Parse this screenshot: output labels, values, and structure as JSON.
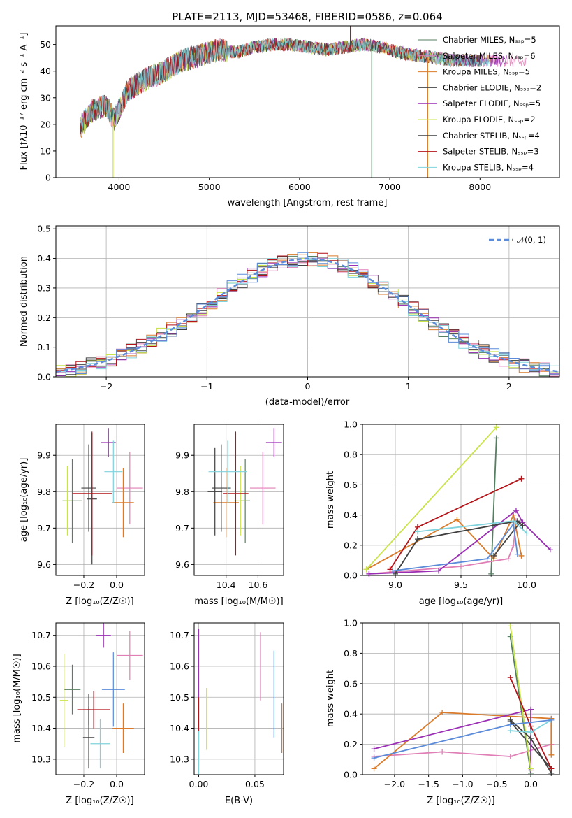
{
  "colors": [
    "#557f61",
    "#e07fb6",
    "#d97b2a",
    "#454545",
    "#9a2fb4",
    "#c9e44a",
    "#3f3f3f",
    "#b3141a",
    "#7fd3dd"
  ],
  "chart_data": [
    {
      "id": "spectrum",
      "type": "line",
      "title": "PLATE=2113, MJD=53468, FIBERID=0586, z=0.064",
      "xlabel": "wavelength [Angstrom, rest frame]",
      "ylabel": "Flux [fλ10⁻¹⁷ erg cm⁻² s⁻¹ A⁻¹]",
      "xlim": [
        3300,
        8880
      ],
      "ylim": [
        0,
        57
      ],
      "xticks": [
        4000,
        5000,
        6000,
        7000,
        8000
      ],
      "yticks": [
        0,
        10,
        20,
        30,
        40,
        50
      ],
      "legend_position": "top-right",
      "series": [
        {
          "name": "Chabrier MILES, Nₛₛₚ=5"
        },
        {
          "name": "Salpeter MILES, Nₛₛₚ=6"
        },
        {
          "name": "Kroupa MILES, Nₛₛₚ=5"
        },
        {
          "name": "Chabrier ELODIE, Nₛₛₚ=2"
        },
        {
          "name": "Salpeter ELODIE, Nₛₛₚ=5"
        },
        {
          "name": "Kroupa ELODIE, Nₛₛₚ=2"
        },
        {
          "name": "Chabrier STELIB, Nₛₛₚ=4"
        },
        {
          "name": "Salpeter STELIB, Nₛₛₚ=3"
        },
        {
          "name": "Kroupa STELIB, Nₛₛₚ=4"
        }
      ],
      "continuum": {
        "x": [
          3570,
          3700,
          3850,
          3950,
          4100,
          4300,
          4500,
          4700,
          4900,
          5100,
          5300,
          5500,
          5700,
          5900,
          6100,
          6300,
          6500,
          6700,
          6900,
          7100,
          7300,
          7500,
          7700,
          7900,
          8100,
          8300,
          8500,
          8700,
          8880
        ],
        "y": [
          19,
          25,
          27,
          22,
          33,
          37,
          40,
          44,
          46,
          48,
          47,
          49,
          50,
          50,
          49,
          48,
          49,
          50,
          49,
          47,
          46,
          45,
          44,
          44,
          44,
          44,
          43,
          43,
          43
        ]
      },
      "model_end": [
        7420,
        8520,
        8150,
        8000,
        8300,
        7700,
        8000,
        7420,
        8100
      ],
      "absorption_lines": [
        {
          "x": 3934,
          "y": 0
        },
        {
          "x": 6563,
          "y": 57
        },
        {
          "x": 6800,
          "y": 0
        },
        {
          "x": 7420,
          "y": 0
        }
      ]
    },
    {
      "id": "residuals",
      "type": "histogram",
      "xlabel": "(data-model)/error",
      "ylabel": "Normed distribution",
      "xlim": [
        -2.5,
        2.5
      ],
      "ylim": [
        0,
        0.51
      ],
      "xticks": [
        -2,
        -1,
        0,
        1,
        2
      ],
      "yticks": [
        0.0,
        0.1,
        0.2,
        0.3,
        0.4,
        0.5
      ],
      "bin_edges_step": 0.1,
      "reference": {
        "name": "𝒩(0, 1)",
        "mean": 0,
        "sigma": 1,
        "color": "#5b8bd9"
      }
    },
    {
      "id": "age_vs_Z",
      "type": "scatter",
      "xlabel": "Z [log₁₀(Z/Z☉)]",
      "ylabel": "age  [log₁₀(age/yr)]",
      "xlim": [
        -0.37,
        0.17
      ],
      "ylim": [
        9.57,
        9.985
      ],
      "xticks": [
        -0.2,
        0.0
      ],
      "yticks": [
        9.6,
        9.7,
        9.8,
        9.9
      ],
      "points": [
        {
          "x": -0.27,
          "y": 9.775,
          "xerr": 0.06,
          "yerr": 0.115,
          "color": "#557f61"
        },
        {
          "x": 0.08,
          "y": 9.81,
          "xerr": 0.08,
          "yerr": 0.1,
          "color": "#e07fb6"
        },
        {
          "x": 0.04,
          "y": 9.77,
          "xerr": 0.065,
          "yerr": 0.095,
          "color": "#d97b2a"
        },
        {
          "x": -0.17,
          "y": 9.81,
          "xerr": 0.045,
          "yerr": 0.12,
          "color": "#454545"
        },
        {
          "x": -0.05,
          "y": 9.935,
          "xerr": 0.045,
          "yerr": 0.04,
          "color": "#9a2fb4"
        },
        {
          "x": -0.3,
          "y": 9.775,
          "xerr": 0.025,
          "yerr": 0.095,
          "color": "#c9e44a"
        },
        {
          "x": -0.15,
          "y": 9.78,
          "xerr": 0.03,
          "yerr": 0.18,
          "color": "#3f3f3f"
        },
        {
          "x": -0.15,
          "y": 9.795,
          "xerr": 0.12,
          "yerr": 0.17,
          "color": "#b3141a"
        },
        {
          "x": -0.02,
          "y": 9.855,
          "xerr": 0.055,
          "yerr": 0.085,
          "color": "#7fd3dd"
        }
      ]
    },
    {
      "id": "age_vs_mass",
      "type": "scatter",
      "xlabel": "mass [log₁₀(M/M☉)]",
      "ylabel": "",
      "xlim": [
        10.2,
        10.76
      ],
      "ylim": [
        9.57,
        9.985
      ],
      "xticks": [
        10.4,
        10.6
      ],
      "yticks": [
        9.6,
        9.7,
        9.8,
        9.9
      ],
      "points": [
        {
          "x": 10.52,
          "y": 9.775,
          "xerr": 0.03,
          "yerr": 0.115,
          "color": "#557f61"
        },
        {
          "x": 10.63,
          "y": 9.81,
          "xerr": 0.08,
          "yerr": 0.1,
          "color": "#e07fb6"
        },
        {
          "x": 10.4,
          "y": 9.77,
          "xerr": 0.08,
          "yerr": 0.095,
          "color": "#d97b2a"
        },
        {
          "x": 10.37,
          "y": 9.81,
          "xerr": 0.06,
          "yerr": 0.12,
          "color": "#454545"
        },
        {
          "x": 10.7,
          "y": 9.935,
          "xerr": 0.05,
          "yerr": 0.04,
          "color": "#9a2fb4"
        },
        {
          "x": 10.49,
          "y": 9.775,
          "xerr": 0.04,
          "yerr": 0.095,
          "color": "#c9e44a"
        },
        {
          "x": 10.33,
          "y": 9.8,
          "xerr": 0.045,
          "yerr": 0.12,
          "color": "#3f3f3f"
        },
        {
          "x": 10.46,
          "y": 9.795,
          "xerr": 0.08,
          "yerr": 0.17,
          "color": "#b3141a"
        },
        {
          "x": 10.41,
          "y": 9.855,
          "xerr": 0.12,
          "yerr": 0.085,
          "color": "#7fd3dd"
        }
      ]
    },
    {
      "id": "weight_vs_age",
      "type": "line",
      "xlabel": "age  [log₁₀(age/yr)]",
      "ylabel": "mass weight",
      "xlim": [
        8.75,
        10.25
      ],
      "ylim": [
        0,
        1.0
      ],
      "xticks": [
        9.0,
        9.5,
        10.0
      ],
      "yticks": [
        0.0,
        0.2,
        0.4,
        0.6,
        0.8,
        1.0
      ],
      "series": [
        {
          "x": [
            9.73,
            9.77
          ],
          "y": [
            0.01,
            0.91
          ],
          "color": "#557f61"
        },
        {
          "x": [
            8.8,
            9.5,
            9.86,
            9.9,
            9.92
          ],
          "y": [
            0.01,
            0.06,
            0.11,
            0.2,
            0.36
          ],
          "color": "#e07fb6"
        },
        {
          "x": [
            8.78,
            9.47,
            9.75,
            9.9,
            9.96
          ],
          "y": [
            0.04,
            0.37,
            0.11,
            0.4,
            0.13
          ],
          "color": "#d97b2a"
        },
        {
          "x": [
            9.75,
            9.95
          ],
          "y": [
            0.13,
            0.35
          ],
          "color": "#454545"
        },
        {
          "x": [
            8.8,
            9.33,
            9.92,
            9.97,
            10.18
          ],
          "y": [
            0.01,
            0.03,
            0.43,
            0.35,
            0.17
          ],
          "color": "#9a2fb4"
        },
        {
          "x": [
            8.78,
            9.77
          ],
          "y": [
            0.04,
            0.98
          ],
          "color": "#c9e44a"
        },
        {
          "x": [
            9.0,
            9.17,
            9.93,
            9.97
          ],
          "y": [
            0.01,
            0.24,
            0.36,
            0.33
          ],
          "color": "#3f3f3f"
        },
        {
          "x": [
            8.96,
            9.17,
            9.96
          ],
          "y": [
            0.04,
            0.32,
            0.64
          ],
          "color": "#b3141a"
        },
        {
          "x": [
            9.17,
            9.9,
            10.0
          ],
          "y": [
            0.29,
            0.36,
            0.28
          ],
          "color": "#7fd3dd"
        },
        {
          "x": [
            8.98,
            9.7,
            9.9,
            9.93
          ],
          "y": [
            0.03,
            0.11,
            0.34,
            0.14
          ],
          "color": "#5b8bd9"
        }
      ]
    },
    {
      "id": "mass_vs_Z",
      "type": "scatter",
      "xlabel": "Z [log₁₀(Z/Z☉)]",
      "ylabel": "mass [log₁₀(M/M☉)]",
      "xlim": [
        -0.37,
        0.17
      ],
      "ylim": [
        10.25,
        10.74
      ],
      "xticks": [
        -0.2,
        0.0
      ],
      "yticks": [
        10.3,
        10.4,
        10.5,
        10.6,
        10.7
      ],
      "points": [
        {
          "x": -0.27,
          "y": 10.525,
          "xerr": 0.05,
          "yerr": 0.08,
          "color": "#557f61"
        },
        {
          "x": 0.08,
          "y": 10.635,
          "xerr": 0.08,
          "yerr": 0.08,
          "color": "#e07fb6"
        },
        {
          "x": 0.04,
          "y": 10.4,
          "xerr": 0.065,
          "yerr": 0.08,
          "color": "#d97b2a"
        },
        {
          "x": -0.17,
          "y": 10.37,
          "xerr": 0.035,
          "yerr": 0.1,
          "color": "#454545"
        },
        {
          "x": -0.08,
          "y": 10.7,
          "xerr": 0.045,
          "yerr": 0.04,
          "color": "#9a2fb4"
        },
        {
          "x": -0.32,
          "y": 10.49,
          "xerr": 0.025,
          "yerr": 0.15,
          "color": "#c9e44a"
        },
        {
          "x": -0.17,
          "y": 10.46,
          "xerr": 0.01,
          "yerr": 0.05,
          "color": "#3f3f3f"
        },
        {
          "x": -0.14,
          "y": 10.46,
          "xerr": 0.1,
          "yerr": 0.06,
          "color": "#b3141a"
        },
        {
          "x": -0.1,
          "y": 10.35,
          "xerr": 0.06,
          "yerr": 0.08,
          "color": "#7fd3dd"
        },
        {
          "x": -0.02,
          "y": 10.525,
          "xerr": 0.07,
          "yerr": 0.12,
          "color": "#5b8bd9"
        }
      ]
    },
    {
      "id": "mass_vs_ebv",
      "type": "scatter",
      "xlabel": "E(B-V)",
      "ylabel": "",
      "xlim": [
        -0.004,
        0.0755
      ],
      "ylim": [
        10.25,
        10.74
      ],
      "xticks": [
        0.0,
        0.05
      ],
      "yticks": [
        10.3,
        10.4,
        10.5,
        10.6,
        10.7
      ],
      "points": [
        {
          "x": 0.0,
          "y": 10.5,
          "yerr": 0.22,
          "color": "#9a2fb4"
        },
        {
          "x": 0.0,
          "y": 10.4,
          "yerr": 0.1,
          "color": "#b3141a"
        },
        {
          "x": 0.0,
          "y": 10.32,
          "yerr": 0.07,
          "color": "#7fd3dd"
        },
        {
          "x": 0.007,
          "y": 10.43,
          "yerr": 0.1,
          "color": "#c9e44a"
        },
        {
          "x": 0.055,
          "y": 10.6,
          "yerr": 0.11,
          "color": "#e07fb6"
        },
        {
          "x": 0.067,
          "y": 10.51,
          "yerr": 0.14,
          "color": "#5b8bd9"
        },
        {
          "x": 0.074,
          "y": 10.4,
          "yerr": 0.08,
          "color": "#d97b2a"
        }
      ]
    },
    {
      "id": "weight_vs_Z",
      "type": "line",
      "xlabel": "Z [log₁₀(Z/Z☉)]",
      "ylabel": "mass weight",
      "xlim": [
        -2.47,
        0.42
      ],
      "ylim": [
        0,
        1.0
      ],
      "xticks": [
        -2.0,
        -1.5,
        -1.0,
        -0.5,
        0.0
      ],
      "yticks": [
        0.0,
        0.2,
        0.4,
        0.6,
        0.8,
        1.0
      ],
      "series": [
        {
          "x": [
            -0.3,
            0.0
          ],
          "y": [
            0.91,
            0.01
          ],
          "color": "#557f61"
        },
        {
          "x": [
            -2.3,
            -1.3,
            -0.3,
            0.3
          ],
          "y": [
            0.12,
            0.15,
            0.12,
            0.2
          ],
          "color": "#e07fb6"
        },
        {
          "x": [
            -2.3,
            -1.3,
            0.3,
            0.3
          ],
          "y": [
            0.04,
            0.41,
            0.37,
            0.13
          ],
          "color": "#d97b2a"
        },
        {
          "x": [
            -0.3,
            0.3
          ],
          "y": [
            0.35,
            0.04
          ],
          "color": "#454545"
        },
        {
          "x": [
            -2.3,
            0.0,
            0.0
          ],
          "y": [
            0.17,
            0.43,
            0.03
          ],
          "color": "#9a2fb4"
        },
        {
          "x": [
            -0.3,
            0.0
          ],
          "y": [
            0.98,
            0.04
          ],
          "color": "#c9e44a"
        },
        {
          "x": [
            -0.3,
            0.0,
            0.3
          ],
          "y": [
            0.36,
            0.24,
            0.01
          ],
          "color": "#3f3f3f"
        },
        {
          "x": [
            -0.3,
            0.0,
            0.3
          ],
          "y": [
            0.64,
            0.32,
            0.04
          ],
          "color": "#b3141a"
        },
        {
          "x": [
            -0.3,
            0.0,
            0.3
          ],
          "y": [
            0.29,
            0.28,
            0.36
          ],
          "color": "#7fd3dd"
        },
        {
          "x": [
            -2.3,
            -0.3,
            0.3
          ],
          "y": [
            0.11,
            0.33,
            0.36
          ],
          "color": "#5b8bd9"
        }
      ]
    }
  ]
}
